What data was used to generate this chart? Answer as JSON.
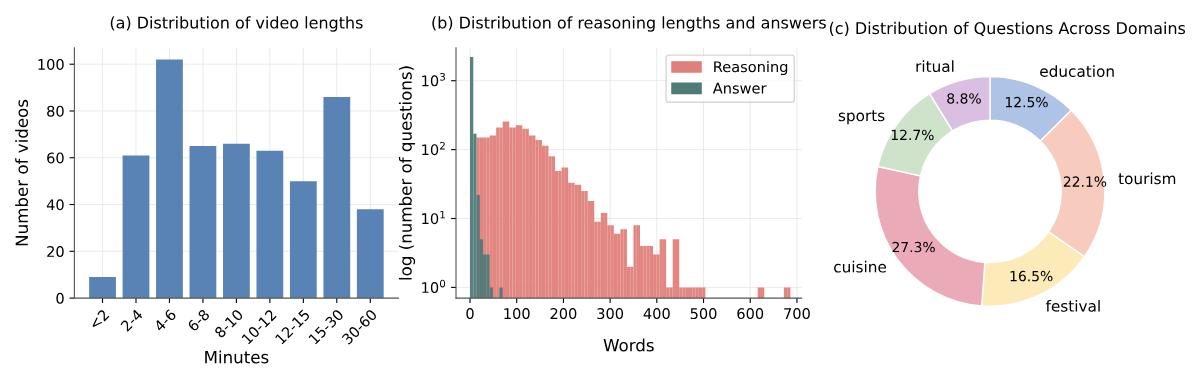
{
  "chart_data": [
    {
      "type": "bar",
      "title": "(a) Distribution of video lengths",
      "xlabel": "Minutes",
      "ylabel": "Number of videos",
      "categories": [
        "<2",
        "2-4",
        "4-6",
        "6-8",
        "8-10",
        "10-12",
        "12-15",
        "15-30",
        "30-60"
      ],
      "values": [
        9,
        61,
        102,
        65,
        66,
        63,
        50,
        86,
        38
      ],
      "color": "#4f7cb0",
      "ylim": [
        0,
        107
      ],
      "yticks": [
        0,
        20,
        40,
        60,
        80,
        100
      ],
      "grid": true
    },
    {
      "type": "histogram",
      "title": "(b) Distribution of reasoning lengths and answers",
      "xlabel": "Words",
      "ylabel": "log (number of questions)",
      "log": "y",
      "grid": true,
      "legend": "top right",
      "xlim": [
        -30,
        710
      ],
      "xticks": [
        0,
        100,
        200,
        300,
        400,
        500,
        600,
        700
      ],
      "ylim": [
        0.7,
        3000
      ],
      "yticks": [
        {
          "value": 1,
          "label": "10$^{0}$"
        },
        {
          "value": 10,
          "label": "10$^{1}$"
        },
        {
          "value": 100,
          "label": "10$^{2}$"
        },
        {
          "value": 1000,
          "label": "10$^{3}$"
        }
      ],
      "bins": [
        0,
        7,
        14,
        21,
        28,
        35,
        42,
        49,
        56,
        63,
        70,
        77,
        84,
        91,
        98,
        105,
        112,
        119,
        126,
        133,
        140,
        147,
        154,
        161,
        168,
        175,
        182,
        189,
        196,
        203,
        210,
        217,
        224,
        231,
        238,
        245,
        252,
        259,
        266,
        273,
        280,
        287,
        294,
        301,
        308,
        315,
        322,
        329,
        336,
        343,
        350,
        357,
        364,
        371,
        378,
        385,
        392,
        399,
        406,
        413,
        420,
        427,
        434,
        441,
        448,
        455,
        462,
        469,
        476,
        483,
        490,
        497,
        504,
        511,
        518,
        525,
        532,
        539,
        546,
        553,
        560,
        567,
        574,
        581,
        588,
        595,
        602,
        609,
        616,
        623,
        630,
        637,
        644,
        651,
        658,
        665,
        672,
        679,
        686
      ],
      "series": [
        {
          "name": "Reasoning",
          "color": "#e0807a",
          "values": [
            null,
            null,
            150,
            150,
            150,
            150,
            160,
            160,
            210,
            210,
            255,
            255,
            210,
            210,
            225,
            225,
            200,
            200,
            160,
            160,
            138,
            138,
            114,
            114,
            80,
            80,
            49,
            49,
            55,
            55,
            33,
            33,
            31,
            31,
            25,
            25,
            18,
            18,
            9,
            9,
            12,
            12,
            8,
            8,
            6,
            6,
            7,
            7,
            2,
            2,
            8,
            8,
            4,
            4,
            4,
            4,
            3,
            3,
            5,
            5,
            1,
            1,
            5,
            5,
            1,
            1,
            1,
            1,
            1,
            1,
            1,
            1,
            null,
            null,
            null,
            null,
            null,
            null,
            null,
            null,
            null,
            null,
            null,
            null,
            null,
            null,
            null,
            null,
            1,
            1,
            null,
            null,
            null,
            null,
            null,
            null,
            1,
            1
          ]
        },
        {
          "name": "Answer",
          "color": "#4f7a78",
          "values": [
            2200,
            170,
            22,
            5,
            3,
            3,
            1,
            null,
            null,
            1,
            null,
            null,
            null,
            null,
            null,
            null,
            null,
            null,
            null,
            null,
            null,
            null,
            null,
            null,
            null,
            null,
            null,
            null,
            null,
            null,
            null,
            null,
            null,
            null,
            null,
            null,
            null,
            null,
            null,
            null,
            null,
            null,
            null,
            null,
            null,
            null,
            null,
            null,
            null,
            null,
            null,
            null,
            null,
            null,
            null,
            null,
            null,
            null,
            null,
            null,
            null,
            null,
            null,
            null,
            null,
            null,
            null,
            null,
            null,
            null,
            null,
            null,
            null,
            null,
            null,
            null,
            null,
            null,
            null,
            null,
            null,
            null,
            null,
            null,
            null,
            null,
            null,
            null,
            null,
            null,
            null,
            null,
            null,
            null,
            null,
            null,
            null,
            null
          ]
        }
      ]
    },
    {
      "type": "donut",
      "title": "(c) Distribution of Questions Across Domains",
      "categories": [
        "education",
        "tourism",
        "festival",
        "cuisine",
        "sports",
        "ritual"
      ],
      "values": [
        12.5,
        22.1,
        16.5,
        27.3,
        12.7,
        8.8
      ],
      "value_labels": [
        "12.5%",
        "22.1%",
        "16.5%",
        "27.3%",
        "12.7%",
        "8.8%"
      ],
      "colors": [
        "#aec3e5",
        "#f7cbbd",
        "#fcebb8",
        "#ebaab7",
        "#cfe3cb",
        "#dbbfe3"
      ]
    }
  ]
}
